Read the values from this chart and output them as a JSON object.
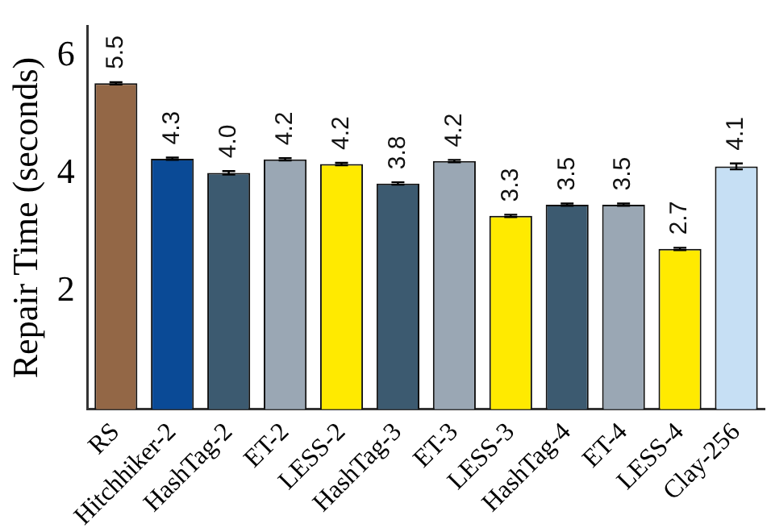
{
  "chart_data": {
    "type": "bar",
    "ylabel": "Repair Time (seconds)",
    "categories": [
      "RS",
      "Hitchhiker-2",
      "HashTag-2",
      "ET-2",
      "LESS-2",
      "HashTag-3",
      "ET-3",
      "LESS-3",
      "HashTag-4",
      "ET-4",
      "LESS-4",
      "Clay-256"
    ],
    "values": [
      5.53,
      4.25,
      4.01,
      4.24,
      4.16,
      3.83,
      4.21,
      3.28,
      3.47,
      3.47,
      2.72,
      4.12
    ],
    "value_labels": [
      "5.5",
      "4.3",
      "4.0",
      "4.2",
      "4.2",
      "3.8",
      "4.2",
      "3.3",
      "3.5",
      "3.5",
      "2.7",
      "4.1"
    ],
    "colors": [
      "#936746",
      "#0a4a96",
      "#3c5a70",
      "#9aa7b4",
      "#ffea00",
      "#3c5a70",
      "#9aa7b4",
      "#ffea00",
      "#3c5a70",
      "#9aa7b4",
      "#ffea00",
      "#c6dff4"
    ],
    "errors": [
      0.02,
      0.02,
      0.03,
      0.02,
      0.02,
      0.02,
      0.02,
      0.02,
      0.02,
      0.02,
      0.02,
      0.05
    ],
    "ylim": [
      0,
      6.5
    ],
    "yticks": [
      2,
      4,
      6
    ],
    "grid": false,
    "legend": false
  }
}
